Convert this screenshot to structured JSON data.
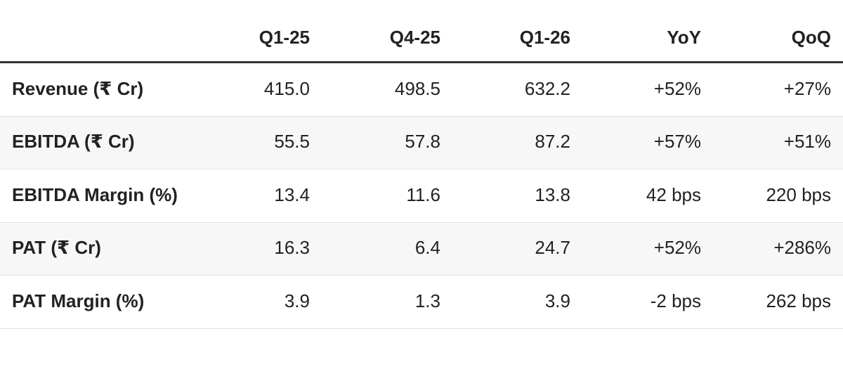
{
  "table": {
    "header": [
      "Q1-25",
      "Q4-25",
      "Q1-26",
      "YoY",
      "QoQ"
    ],
    "rows": [
      [
        "Revenue (₹ Cr)",
        "415.0",
        "498.5",
        "632.2",
        "+52%",
        "+27%"
      ],
      [
        "EBITDA (₹ Cr)",
        "55.5",
        "57.8",
        "87.2",
        "+57%",
        "+51%"
      ],
      [
        "EBITDA Margin (%)",
        "13.4",
        "11.6",
        "13.8",
        "42 bps",
        "220 bps"
      ],
      [
        "PAT (₹ Cr)",
        "16.3",
        "6.4",
        "24.7",
        "+52%",
        "+286%"
      ],
      [
        "PAT Margin (%)",
        "3.9",
        "1.3",
        "3.9",
        "-2 bps",
        "262 bps"
      ]
    ]
  }
}
